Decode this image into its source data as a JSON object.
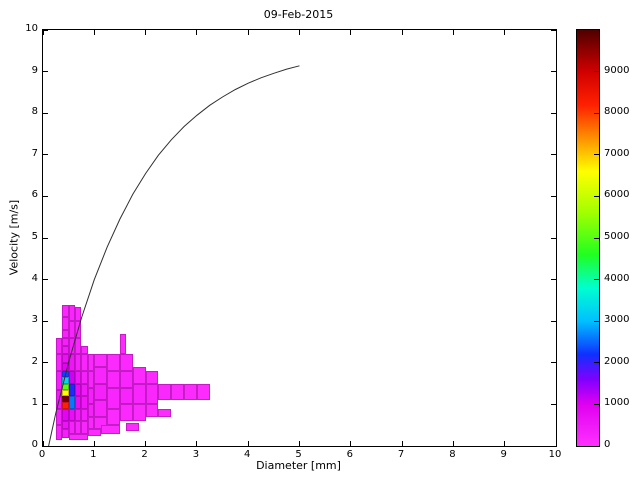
{
  "chart_data": {
    "type": "heatmap",
    "title": "09-Feb-2015",
    "xlabel": "Diameter [mm]",
    "ylabel": "Velocity [m/s]",
    "xlim": [
      0,
      10
    ],
    "ylim": [
      0,
      10
    ],
    "x_ticks": [
      0,
      1,
      2,
      3,
      4,
      5,
      6,
      7,
      8,
      9,
      10
    ],
    "y_ticks": [
      0,
      1,
      2,
      3,
      4,
      5,
      6,
      7,
      8,
      9,
      10
    ],
    "grid": false,
    "legend": "colorbar-right",
    "colorbar": {
      "range": [
        0,
        10000
      ],
      "ticks": [
        0,
        1000,
        2000,
        3000,
        4000,
        5000,
        6000,
        7000,
        8000,
        9000
      ],
      "stops": [
        [
          0,
          "#ff30ff"
        ],
        [
          1000,
          "#e000f0"
        ],
        [
          1600,
          "#8000ff"
        ],
        [
          2200,
          "#1030ff"
        ],
        [
          3000,
          "#00c0ff"
        ],
        [
          3800,
          "#00ffd0"
        ],
        [
          4600,
          "#20ff20"
        ],
        [
          5600,
          "#a0ff00"
        ],
        [
          6600,
          "#ffff00"
        ],
        [
          7400,
          "#ff9000"
        ],
        [
          8200,
          "#ff2000"
        ],
        [
          9000,
          "#d00000"
        ],
        [
          10000,
          "#500000"
        ]
      ]
    },
    "cells": [
      [
        0.25,
        0.15,
        0.125,
        0.35,
        200
      ],
      [
        0.25,
        0.5,
        0.125,
        0.4,
        320
      ],
      [
        0.25,
        0.9,
        0.125,
        0.45,
        480
      ],
      [
        0.25,
        1.35,
        0.125,
        0.45,
        380
      ],
      [
        0.25,
        1.8,
        0.125,
        0.4,
        260
      ],
      [
        0.25,
        2.2,
        0.125,
        0.4,
        200
      ],
      [
        0.375,
        0.2,
        0.125,
        0.2,
        350
      ],
      [
        0.375,
        0.4,
        0.125,
        0.2,
        600
      ],
      [
        0.375,
        0.6,
        0.125,
        0.3,
        900
      ],
      [
        0.375,
        0.9,
        0.125,
        0.15,
        8200
      ],
      [
        0.375,
        1.05,
        0.125,
        0.15,
        9700
      ],
      [
        0.375,
        1.2,
        0.125,
        0.15,
        6600
      ],
      [
        0.375,
        1.35,
        0.125,
        0.15,
        5000
      ],
      [
        0.375,
        1.5,
        0.125,
        0.15,
        3300
      ],
      [
        0.375,
        1.65,
        0.125,
        0.15,
        2300
      ],
      [
        0.375,
        1.8,
        0.125,
        0.2,
        900
      ],
      [
        0.375,
        2.0,
        0.125,
        0.2,
        650
      ],
      [
        0.375,
        2.2,
        0.125,
        0.2,
        450
      ],
      [
        0.375,
        2.4,
        0.125,
        0.2,
        350
      ],
      [
        0.375,
        2.6,
        0.125,
        0.2,
        280
      ],
      [
        0.375,
        2.8,
        0.125,
        0.3,
        220
      ],
      [
        0.375,
        3.1,
        0.125,
        0.3,
        170
      ],
      [
        0.5,
        0.15,
        0.375,
        0.15,
        150
      ],
      [
        0.5,
        0.3,
        0.125,
        0.3,
        300
      ],
      [
        0.5,
        0.6,
        0.125,
        0.3,
        700
      ],
      [
        0.5,
        0.9,
        0.125,
        0.3,
        2600
      ],
      [
        0.5,
        1.2,
        0.125,
        0.3,
        2100
      ],
      [
        0.5,
        1.5,
        0.125,
        0.3,
        1100
      ],
      [
        0.5,
        1.8,
        0.125,
        0.4,
        550
      ],
      [
        0.5,
        2.2,
        0.125,
        0.4,
        350
      ],
      [
        0.5,
        2.6,
        0.125,
        0.4,
        260
      ],
      [
        0.5,
        3.0,
        0.125,
        0.4,
        200
      ],
      [
        0.625,
        0.3,
        0.125,
        0.3,
        260
      ],
      [
        0.625,
        0.6,
        0.125,
        0.3,
        420
      ],
      [
        0.625,
        0.9,
        0.125,
        0.3,
        750
      ],
      [
        0.625,
        1.2,
        0.125,
        0.3,
        800
      ],
      [
        0.625,
        1.5,
        0.125,
        0.3,
        520
      ],
      [
        0.625,
        1.8,
        0.125,
        0.4,
        320
      ],
      [
        0.625,
        2.2,
        0.125,
        0.4,
        220
      ],
      [
        0.625,
        2.6,
        0.125,
        0.4,
        170
      ],
      [
        0.625,
        3.0,
        0.125,
        0.35,
        140
      ],
      [
        0.75,
        0.3,
        0.125,
        0.3,
        220
      ],
      [
        0.75,
        0.6,
        0.125,
        0.3,
        360
      ],
      [
        0.75,
        0.9,
        0.125,
        0.3,
        520
      ],
      [
        0.75,
        1.2,
        0.125,
        0.3,
        480
      ],
      [
        0.75,
        1.5,
        0.125,
        0.3,
        320
      ],
      [
        0.75,
        1.8,
        0.125,
        0.4,
        210
      ],
      [
        0.75,
        2.2,
        0.125,
        0.2,
        150
      ],
      [
        0.875,
        0.25,
        0.25,
        0.15,
        100
      ],
      [
        0.875,
        0.4,
        0.125,
        0.3,
        190
      ],
      [
        0.875,
        0.7,
        0.125,
        0.3,
        310
      ],
      [
        0.875,
        1.0,
        0.125,
        0.4,
        360
      ],
      [
        0.875,
        1.4,
        0.125,
        0.4,
        260
      ],
      [
        0.875,
        1.8,
        0.125,
        0.4,
        160
      ],
      [
        1.0,
        0.4,
        0.25,
        0.3,
        160
      ],
      [
        1.0,
        0.7,
        0.25,
        0.4,
        260
      ],
      [
        1.0,
        1.1,
        0.25,
        0.4,
        310
      ],
      [
        1.0,
        1.5,
        0.25,
        0.4,
        210
      ],
      [
        1.0,
        1.9,
        0.25,
        0.3,
        130
      ],
      [
        1.125,
        0.3,
        0.375,
        0.2,
        100
      ],
      [
        1.25,
        0.5,
        0.25,
        0.4,
        130
      ],
      [
        1.25,
        0.9,
        0.25,
        0.5,
        210
      ],
      [
        1.25,
        1.4,
        0.25,
        0.4,
        190
      ],
      [
        1.25,
        1.8,
        0.25,
        0.4,
        130
      ],
      [
        1.5,
        0.6,
        0.25,
        0.4,
        140
      ],
      [
        1.5,
        1.0,
        0.25,
        0.4,
        260
      ],
      [
        1.5,
        1.4,
        0.25,
        0.4,
        210
      ],
      [
        1.5,
        1.8,
        0.25,
        0.4,
        140
      ],
      [
        1.5,
        2.2,
        0.125,
        0.5,
        110
      ],
      [
        1.625,
        0.35,
        0.25,
        0.2,
        80
      ],
      [
        1.75,
        0.6,
        0.25,
        0.4,
        110
      ],
      [
        1.75,
        1.0,
        0.25,
        0.5,
        210
      ],
      [
        1.75,
        1.5,
        0.25,
        0.4,
        130
      ],
      [
        2.0,
        0.7,
        0.25,
        0.3,
        90
      ],
      [
        2.0,
        1.0,
        0.25,
        0.5,
        190
      ],
      [
        2.0,
        1.5,
        0.25,
        0.3,
        110
      ],
      [
        2.25,
        0.7,
        0.25,
        0.2,
        90
      ],
      [
        2.25,
        1.1,
        0.25,
        0.4,
        160
      ],
      [
        2.5,
        1.1,
        0.25,
        0.4,
        130
      ],
      [
        2.75,
        1.1,
        0.25,
        0.4,
        110
      ],
      [
        3.0,
        1.1,
        0.25,
        0.4,
        100
      ]
    ],
    "curve": {
      "name": "terminal-velocity-curve",
      "points": [
        [
          0.11,
          0
        ],
        [
          0.25,
          0.79
        ],
        [
          0.5,
          2.02
        ],
        [
          0.75,
          3.08
        ],
        [
          1.0,
          4.0
        ],
        [
          1.25,
          4.78
        ],
        [
          1.5,
          5.46
        ],
        [
          1.75,
          6.05
        ],
        [
          2.0,
          6.55
        ],
        [
          2.25,
          6.99
        ],
        [
          2.5,
          7.36
        ],
        [
          2.75,
          7.68
        ],
        [
          3.0,
          7.95
        ],
        [
          3.25,
          8.19
        ],
        [
          3.5,
          8.39
        ],
        [
          3.75,
          8.57
        ],
        [
          4.0,
          8.72
        ],
        [
          4.25,
          8.85
        ],
        [
          4.5,
          8.96
        ],
        [
          4.75,
          9.06
        ],
        [
          5.0,
          9.14
        ]
      ]
    }
  }
}
